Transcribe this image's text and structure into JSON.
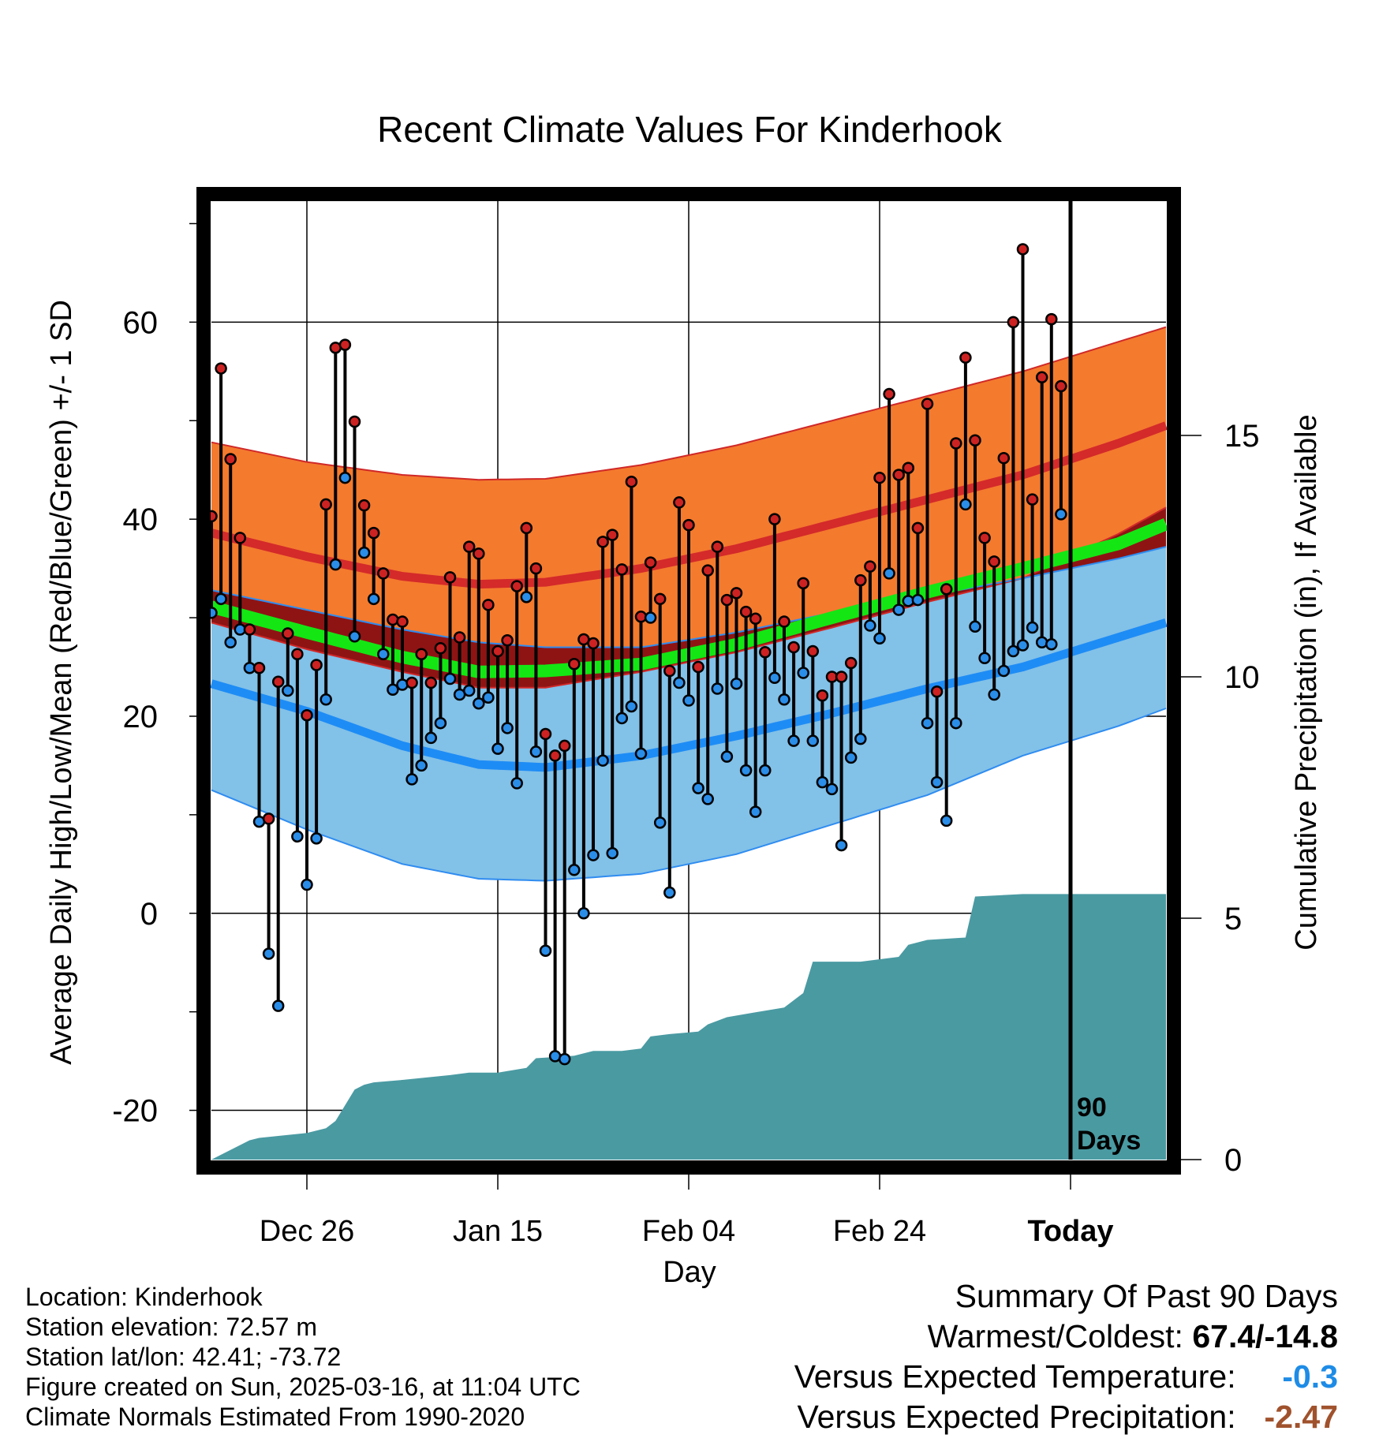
{
  "chart_data": {
    "type": "line",
    "title": "Recent Climate Values For Kinderhook",
    "xlabel": "Day",
    "ylabel": "Average Daily High/Low/Mean (Red/Blue/Green) +/- 1 SD",
    "y2label": "Cumulative Precipitation (in), If Available",
    "ylim": [
      -25,
      73
    ],
    "y2lim": [
      0,
      20
    ],
    "yticks": [
      -20,
      0,
      20,
      40,
      60
    ],
    "y2ticks": [
      0,
      5,
      10,
      15
    ],
    "xticks": [
      {
        "day": 10,
        "label": "Dec 26"
      },
      {
        "day": 30,
        "label": "Jan 15"
      },
      {
        "day": 50,
        "label": "Feb 04"
      },
      {
        "day": 70,
        "label": "Feb 24"
      },
      {
        "day": 90,
        "label": "Today"
      }
    ],
    "xlim": [
      0,
      100
    ],
    "grid": true,
    "today_marker_label": [
      "90",
      "Days"
    ],
    "normals": {
      "days": [
        0,
        10,
        20,
        28,
        35,
        45,
        55,
        65,
        75,
        85,
        95,
        100
      ],
      "high_mean": [
        38.6,
        36.2,
        34.2,
        33.4,
        33.6,
        35.0,
        37.0,
        39.5,
        42.0,
        44.5,
        47.7,
        49.5
      ],
      "high_sd_upper": [
        47.8,
        45.8,
        44.5,
        44.0,
        44.1,
        45.5,
        47.5,
        50.0,
        52.5,
        55.0,
        58.0,
        59.5
      ],
      "high_sd_lower": [
        29.5,
        26.8,
        24.5,
        22.9,
        22.9,
        24.5,
        26.5,
        29.0,
        31.6,
        34.0,
        38.5,
        41.2
      ],
      "low_mean": [
        23.3,
        20.5,
        17.0,
        15.1,
        14.8,
        16.0,
        18.0,
        20.3,
        22.8,
        25.0,
        28.0,
        29.5
      ],
      "low_sd_upper": [
        32.8,
        30.8,
        28.8,
        27.5,
        27.0,
        27.0,
        28.5,
        30.5,
        32.2,
        34.0,
        36.0,
        37.2
      ],
      "low_sd_lower": [
        12.5,
        8.5,
        5.0,
        3.5,
        3.3,
        4.0,
        6.0,
        9.0,
        12.0,
        16.0,
        19.0,
        20.8
      ],
      "mean": [
        31.1,
        28.5,
        26.0,
        24.5,
        24.6,
        25.3,
        27.3,
        30.0,
        32.6,
        35.0,
        37.5,
        39.5
      ]
    },
    "series": [
      {
        "name": "High",
        "color": "#cc2222",
        "values": [
          40.3,
          55.3,
          46.1,
          38.1,
          28.8,
          24.9,
          9.6,
          23.5,
          28.4,
          26.3,
          20.1,
          25.2,
          41.5,
          57.4,
          57.7,
          49.9,
          41.4,
          38.6,
          34.5,
          29.8,
          29.6,
          23.4,
          26.3,
          23.4,
          26.9,
          34.1,
          28.0,
          37.2,
          36.5,
          31.3,
          26.6,
          27.7,
          33.2,
          39.1,
          35.0,
          18.2,
          16.0,
          17.0,
          25.3,
          27.8,
          27.4,
          37.7,
          38.4,
          34.9,
          43.8,
          30.1,
          35.6,
          31.9,
          24.6,
          41.7,
          39.4,
          25.0,
          34.8,
          37.2,
          31.8,
          32.5,
          30.6,
          29.9,
          26.5,
          40.0,
          29.6,
          27.0,
          33.5,
          26.6,
          22.1,
          24.0,
          24.0,
          25.4,
          33.8,
          35.2,
          44.2,
          52.7,
          44.5,
          45.2,
          39.1,
          51.7,
          22.5,
          32.9,
          47.7,
          56.4,
          48.0,
          38.1,
          35.7,
          46.2,
          60.0,
          67.4,
          42.0,
          54.4,
          60.3,
          53.5
        ]
      },
      {
        "name": "Low",
        "color": "#2a8de8",
        "values": [
          30.5,
          31.9,
          27.5,
          28.8,
          24.9,
          9.3,
          -4.1,
          -9.4,
          22.6,
          7.8,
          2.9,
          7.6,
          21.7,
          35.4,
          44.2,
          28.1,
          36.6,
          31.9,
          26.3,
          22.7,
          23.2,
          13.6,
          15.0,
          17.8,
          19.3,
          23.8,
          22.2,
          22.6,
          21.3,
          21.9,
          16.7,
          18.8,
          13.2,
          32.1,
          16.4,
          -3.8,
          -14.5,
          -14.8,
          4.4,
          0.0,
          5.9,
          15.5,
          6.1,
          19.8,
          21.0,
          16.2,
          30.0,
          9.2,
          2.1,
          23.4,
          21.6,
          12.7,
          11.6,
          22.8,
          15.9,
          23.3,
          14.5,
          10.3,
          14.5,
          23.9,
          21.7,
          17.5,
          24.4,
          17.5,
          13.3,
          12.6,
          6.9,
          15.8,
          17.7,
          29.2,
          27.9,
          34.5,
          30.8,
          31.7,
          31.8,
          19.3,
          13.3,
          9.4,
          19.3,
          41.5,
          29.1,
          25.9,
          22.2,
          24.6,
          26.6,
          27.2,
          29.0,
          27.5,
          27.3,
          40.5
        ]
      }
    ],
    "precip_cumulative": {
      "days": [
        0,
        2,
        4,
        5,
        10,
        12,
        13,
        15,
        16,
        17,
        20,
        25,
        27,
        30,
        33,
        34,
        38,
        40,
        43,
        45,
        46,
        48,
        51,
        52,
        54,
        57,
        60,
        62,
        63,
        68,
        72,
        73,
        75,
        79,
        80,
        85,
        90,
        100
      ],
      "values": [
        0.0,
        0.2,
        0.4,
        0.45,
        0.55,
        0.65,
        0.8,
        1.45,
        1.55,
        1.6,
        1.65,
        1.75,
        1.8,
        1.8,
        1.9,
        2.1,
        2.15,
        2.25,
        2.25,
        2.3,
        2.55,
        2.6,
        2.65,
        2.8,
        2.95,
        3.05,
        3.15,
        3.45,
        4.1,
        4.1,
        4.2,
        4.45,
        4.55,
        4.6,
        5.45,
        5.5,
        5.5,
        5.5
      ]
    },
    "colors": {
      "high_band": "#f47a2e",
      "high_band_edge": "#d02828",
      "high_line": "#d42a2a",
      "low_band": "#82c1e8",
      "low_band_edge": "#2f8cf0",
      "low_line": "#1e8cf5",
      "overlap": "#8e1414",
      "mean_line": "#14e614",
      "precip": "#4a9aa2"
    }
  },
  "footer": {
    "location": "Location: Kinderhook",
    "elevation": "Station elevation: 72.57 m",
    "latlon": "Station lat/lon: 42.41; -73.72",
    "created": "Figure created on Sun, 2025-03-16, at 11:04 UTC",
    "normals": "Climate Normals Estimated From 1990-2020"
  },
  "summary": {
    "heading": "Summary Of Past 90 Days",
    "warm_cold_label": "Warmest/Coldest:",
    "warm_cold_value": "67.4/-14.8",
    "temp_label": "Versus Expected Temperature:",
    "temp_value": "-0.3",
    "temp_color": "#1e8ce6",
    "precip_label": "Versus Expected Precipitation:",
    "precip_value": "-2.47",
    "precip_color": "#a0522d"
  }
}
